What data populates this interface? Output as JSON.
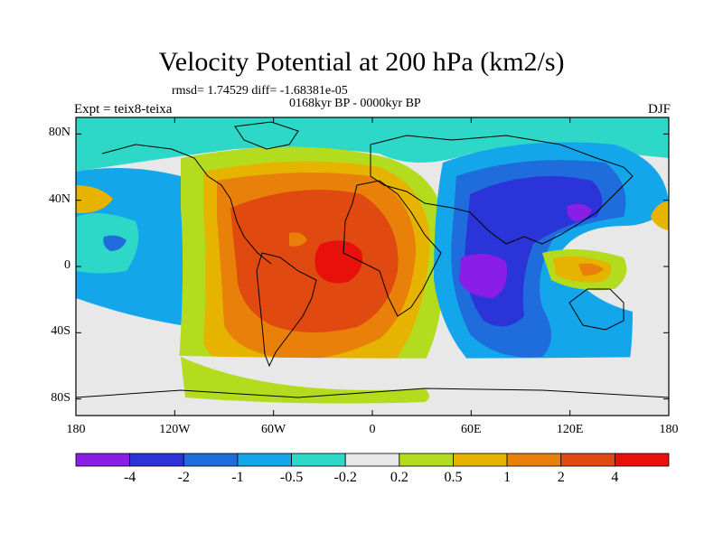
{
  "title": "Velocity Potential at 200 hPa (km2/s)",
  "stats_line": "rmsd= 1.74529 diff= -1.68381e-05",
  "period": "0168kyr BP - 0000kyr BP",
  "experiment": "Expt = teix8-teixa",
  "season": "DJF",
  "map": {
    "projection": "cylindrical-equidistant",
    "lon_range": [
      -180,
      180
    ],
    "lat_range": [
      -90,
      90
    ],
    "lat_ticks": [
      {
        "value": 80,
        "label": "80N"
      },
      {
        "value": 40,
        "label": "40N"
      },
      {
        "value": 0,
        "label": "0"
      },
      {
        "value": -40,
        "label": "40S"
      },
      {
        "value": -80,
        "label": "80S"
      }
    ],
    "lon_ticks": [
      {
        "value": -180,
        "label": "180"
      },
      {
        "value": -120,
        "label": "120W"
      },
      {
        "value": -60,
        "label": "60W"
      },
      {
        "value": 0,
        "label": "0"
      },
      {
        "value": 60,
        "label": "60E"
      },
      {
        "value": 120,
        "label": "120E"
      },
      {
        "value": 180,
        "label": "180"
      }
    ],
    "background_level_color": "#e8e8e8",
    "field_centers": [
      {
        "lon": -12,
        "lat": 2,
        "level": 6,
        "note": "positive max, tropical Atlantic"
      },
      {
        "lon": 70,
        "lat": -5,
        "level": -6,
        "note": "negative min, Indian Ocean"
      },
      {
        "lon": 125,
        "lat": 32,
        "level": -6,
        "note": "negative min, East Asia"
      }
    ]
  },
  "colorbar": {
    "colors": [
      "#8a1ee6",
      "#2a34d8",
      "#1f6ddc",
      "#14a6ea",
      "#2dd8c8",
      "#e8e8e8",
      "#b4dc1e",
      "#e6b400",
      "#e8800a",
      "#e04a10",
      "#e8100a"
    ],
    "labels": [
      "-4",
      "-2",
      "-1",
      "-0.5",
      "-0.2",
      "0.2",
      "0.5",
      "1",
      "2",
      "4"
    ]
  },
  "colors": {
    "coastline": "#000000",
    "frame": "#000000"
  }
}
